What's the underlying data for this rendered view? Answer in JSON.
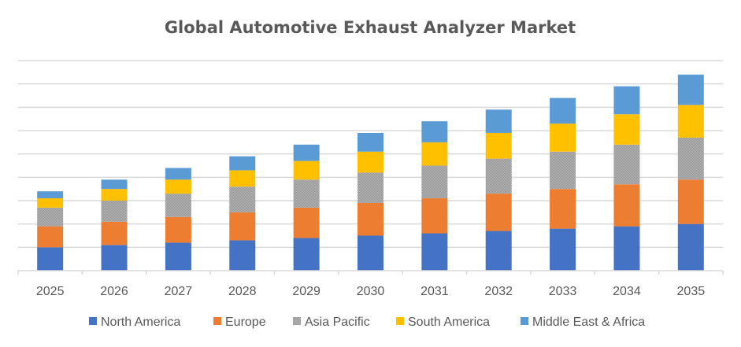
{
  "chart_data": {
    "type": "bar",
    "stacked": true,
    "title": "Global Automotive Exhaust Analyzer Market",
    "xlabel": "",
    "ylabel": "",
    "categories": [
      "2025",
      "2026",
      "2027",
      "2028",
      "2029",
      "2030",
      "2031",
      "2032",
      "2033",
      "2034",
      "2035"
    ],
    "series": [
      {
        "name": "North America",
        "color": "#4472C4",
        "values": [
          1.0,
          1.1,
          1.2,
          1.3,
          1.4,
          1.5,
          1.6,
          1.7,
          1.8,
          1.9,
          2.0
        ]
      },
      {
        "name": "Europe",
        "color": "#ED7D31",
        "values": [
          0.9,
          1.0,
          1.1,
          1.2,
          1.3,
          1.4,
          1.5,
          1.6,
          1.7,
          1.8,
          1.9
        ]
      },
      {
        "name": "Asia Pacific",
        "color": "#A5A5A5",
        "values": [
          0.8,
          0.9,
          1.0,
          1.1,
          1.2,
          1.3,
          1.4,
          1.5,
          1.6,
          1.7,
          1.8
        ]
      },
      {
        "name": "South America",
        "color": "#FFC000",
        "values": [
          0.4,
          0.5,
          0.6,
          0.7,
          0.8,
          0.9,
          1.0,
          1.1,
          1.2,
          1.3,
          1.4
        ]
      },
      {
        "name": "Middle East & Africa",
        "color": "#5B9BD5",
        "values": [
          0.3,
          0.4,
          0.5,
          0.6,
          0.7,
          0.8,
          0.9,
          1.0,
          1.1,
          1.2,
          1.3
        ]
      }
    ],
    "ylim": [
      0,
      9
    ],
    "ytick_step": 1,
    "y_tick_labels_shown": false,
    "grid": true,
    "legend_position": "bottom"
  }
}
